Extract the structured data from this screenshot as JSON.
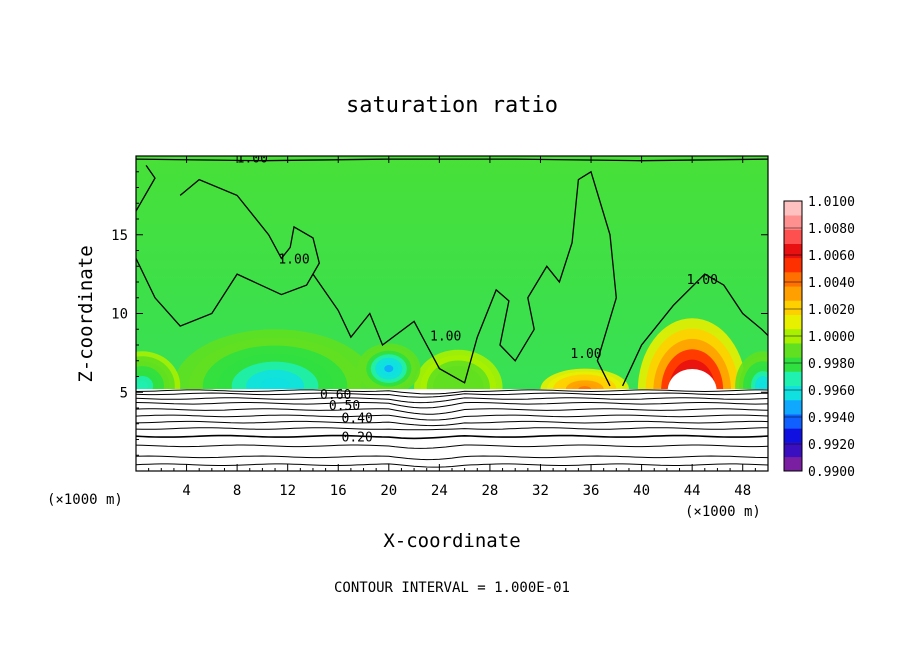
{
  "chart_data": {
    "type": "heatmap",
    "title": "saturation ratio",
    "xlabel": "X-coordinate",
    "ylabel": "Z-coordinate",
    "x_unit_left": "(×1000 m)",
    "x_unit_right": "(×1000 m)",
    "xlim": [
      0,
      50
    ],
    "ylim": [
      0,
      20
    ],
    "x_ticks": [
      "4",
      "8",
      "12",
      "16",
      "20",
      "24",
      "28",
      "32",
      "36",
      "40",
      "44",
      "48"
    ],
    "x_tick_values": [
      4,
      8,
      12,
      16,
      20,
      24,
      28,
      32,
      36,
      40,
      44,
      48
    ],
    "y_ticks": [
      "5",
      "10",
      "15"
    ],
    "y_tick_values": [
      5,
      10,
      15
    ],
    "footer": "CONTOUR INTERVAL = 1.000E-01",
    "colorbar": {
      "labels": [
        "1.0100",
        "1.0080",
        "1.0060",
        "1.0040",
        "1.0020",
        "1.0000",
        "0.9980",
        "0.9960",
        "0.9940",
        "0.9920",
        "0.9900"
      ],
      "min": 0.99,
      "max": 1.01,
      "colors": [
        "#7a1fa2",
        "#3a0fc0",
        "#1010e0",
        "#1060ff",
        "#10a8ff",
        "#10e0e0",
        "#20f0b0",
        "#30e040",
        "#60e020",
        "#a8f000",
        "#e8f000",
        "#ffd000",
        "#ffa000",
        "#ff7000",
        "#ff3000",
        "#e81010",
        "#ff5050",
        "#ff9090",
        "#ffc0c0"
      ]
    },
    "contour_labels": [
      {
        "text": "1.00",
        "x": 9.2,
        "z": 19.9
      },
      {
        "text": "1.00",
        "x": 12.5,
        "z": 13.5
      },
      {
        "text": "1.00",
        "x": 44.8,
        "z": 12.2
      },
      {
        "text": "1.00",
        "x": 24.5,
        "z": 8.6
      },
      {
        "text": "1.00",
        "x": 35.6,
        "z": 7.5
      },
      {
        "text": "0.60",
        "x": 15.8,
        "z": 4.9
      },
      {
        "text": "0.50",
        "x": 16.5,
        "z": 4.2
      },
      {
        "text": "0.40",
        "x": 17.5,
        "z": 3.4
      },
      {
        "text": "0.20",
        "x": 17.5,
        "z": 2.2
      }
    ],
    "contours_below": [
      0.4,
      0.9,
      1.6,
      2.2,
      2.7,
      3.1,
      3.5,
      3.9,
      4.3,
      4.6,
      4.9,
      5.1
    ],
    "anomalies": [
      {
        "x": 44,
        "z": 5.1,
        "rx": 4.3,
        "rz": 4.6,
        "value": 1.0085
      },
      {
        "x": 35.5,
        "z": 5.2,
        "rx": 3.5,
        "rz": 1.3,
        "value": 1.004
      },
      {
        "x": 25.5,
        "z": 5.3,
        "rx": 3.5,
        "rz": 2.4,
        "value": 0.9985
      },
      {
        "x": 11,
        "z": 5.4,
        "rx": 8,
        "rz": 3.6,
        "value": 0.9955
      },
      {
        "x": 0.5,
        "z": 5.4,
        "rx": 3,
        "rz": 2.2,
        "value": 0.9965
      },
      {
        "x": 49.6,
        "z": 5.4,
        "rx": 2.2,
        "rz": 2.2,
        "value": 0.9955
      },
      {
        "x": 20,
        "z": 6.5,
        "rx": 2.5,
        "rz": 1.6,
        "value": 0.9945
      }
    ]
  }
}
